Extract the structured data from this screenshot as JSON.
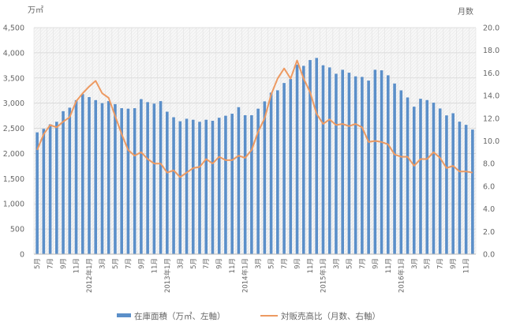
{
  "chart_data": {
    "type": "bar+line",
    "left_axis_unit": "万㎡",
    "right_axis_unit": "月数",
    "ylim_left": [
      0,
      4500
    ],
    "yticks_left": [
      "0",
      "500",
      "1,000",
      "1,500",
      "2,000",
      "2,500",
      "3,000",
      "3,500",
      "4,000",
      "4,500"
    ],
    "ylim_right": [
      0,
      20
    ],
    "yticks_right": [
      "0.0",
      "2.0",
      "4.0",
      "6.0",
      "8.0",
      "10.0",
      "12.0",
      "14.0",
      "16.0",
      "18.0",
      "20.0"
    ],
    "x_tick_labels": [
      "5月",
      "7月",
      "9月",
      "11月",
      "2012年1月",
      "3月",
      "5月",
      "7月",
      "9月",
      "11月",
      "2013年1月",
      "3月",
      "5月",
      "7月",
      "9月",
      "11月",
      "2014年1月",
      "3月",
      "5月",
      "7月",
      "9月",
      "11月",
      "2015年1月",
      "3月",
      "5月",
      "7月",
      "9月",
      "11月",
      "2016年1月",
      "3月",
      "5月",
      "7月",
      "9月",
      "11月"
    ],
    "grid": true,
    "legend_position": "bottom",
    "series": [
      {
        "name": "在庫面積（万㎡、左軸）",
        "type": "bar",
        "axis": "left",
        "color": "#5b8fc9",
        "values": [
          2420,
          2490,
          2580,
          2630,
          2840,
          2910,
          3060,
          3180,
          3120,
          3060,
          3000,
          3040,
          2980,
          2900,
          2890,
          2900,
          3080,
          3020,
          2990,
          3040,
          2830,
          2720,
          2640,
          2690,
          2670,
          2630,
          2670,
          2650,
          2710,
          2750,
          2790,
          2920,
          2760,
          2760,
          2890,
          3035,
          3208,
          3255,
          3400,
          3480,
          3767,
          3741,
          3856,
          3898,
          3752,
          3710,
          3584,
          3663,
          3605,
          3532,
          3521,
          3448,
          3663,
          3652,
          3553,
          3390,
          3254,
          3113,
          2930,
          3087,
          3061,
          3009,
          2894,
          2757,
          2799,
          2632,
          2569,
          2475
        ]
      },
      {
        "name": "対販売高比（月数、右軸）",
        "type": "line",
        "axis": "right",
        "color": "#ed9a62",
        "values": [
          9.2,
          10.6,
          11.4,
          11.2,
          11.7,
          12.1,
          13.5,
          14.2,
          14.8,
          15.3,
          14.2,
          13.8,
          12.2,
          10.6,
          9.2,
          8.7,
          9.0,
          8.4,
          8.0,
          8.0,
          7.2,
          7.4,
          6.8,
          7.2,
          7.6,
          7.7,
          8.4,
          8.0,
          8.6,
          8.3,
          8.3,
          8.7,
          8.5,
          9.2,
          10.8,
          12.0,
          14.1,
          15.5,
          16.4,
          15.5,
          17.1,
          15.5,
          14.3,
          12.4,
          11.5,
          11.9,
          11.4,
          11.5,
          11.3,
          11.5,
          11.2,
          9.9,
          10.0,
          9.9,
          9.7,
          8.8,
          8.6,
          8.6,
          7.8,
          8.4,
          8.4,
          9.0,
          8.5,
          7.6,
          7.8,
          7.3,
          7.3,
          7.2
        ]
      }
    ]
  }
}
